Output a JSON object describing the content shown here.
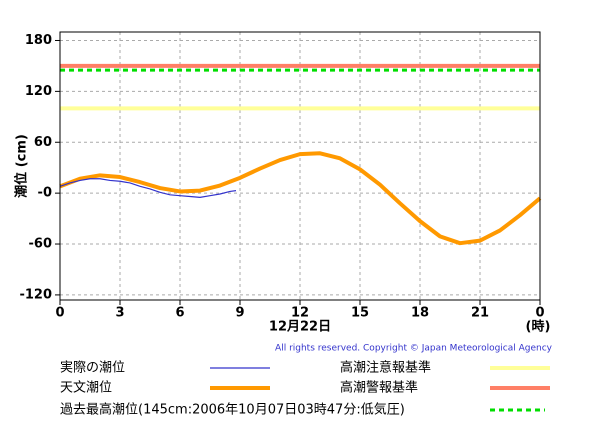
{
  "chart_data": {
    "type": "line",
    "ylabel": "潮位 (cm)",
    "xlabel": "12月22日",
    "xunit": "(時)",
    "copyright": "All rights reserved. Copyright © Japan Meteorological Agency",
    "xlim": [
      0,
      24
    ],
    "xticks": [
      0,
      3,
      6,
      9,
      12,
      15,
      18,
      21,
      {
        "value": 24,
        "label": "0"
      }
    ],
    "ylim": [
      -126,
      190
    ],
    "yticks": [
      -120,
      -60,
      {
        "value": 0,
        "label": "-0"
      },
      60,
      120,
      180
    ],
    "grid": true,
    "series": [
      {
        "name": "実際の潮位",
        "color": "#3333cc",
        "x": [
          0,
          0.5,
          1,
          1.5,
          2,
          2.5,
          3,
          3.5,
          4,
          4.5,
          5,
          5.5,
          6,
          6.5,
          7,
          7.5,
          8,
          8.5,
          8.8
        ],
        "values": [
          8,
          12,
          15,
          17,
          17,
          15,
          14,
          12,
          8,
          5,
          1,
          -2,
          -3,
          -4,
          -5,
          -3,
          -1,
          2,
          3
        ]
      },
      {
        "name": "天文潮位",
        "color": "#ff9900",
        "x": [
          0,
          1,
          2,
          3,
          4,
          5,
          6,
          7,
          8,
          9,
          10,
          11,
          12,
          13,
          14,
          15,
          16,
          17,
          18,
          19,
          20,
          21,
          22,
          23,
          24
        ],
        "values": [
          8,
          17,
          21,
          19,
          13,
          6,
          2,
          3,
          9,
          18,
          29,
          39,
          46,
          47,
          41,
          28,
          10,
          -12,
          -33,
          -51,
          -59,
          -56,
          -44,
          -26,
          -6
        ]
      }
    ],
    "reference_lines": [
      {
        "name": "高潮注意報基準",
        "value": 100,
        "color": "#ffff99",
        "dashed": false
      },
      {
        "name": "高潮警報基準",
        "value": 150,
        "color": "#ff7f66",
        "dashed": false
      },
      {
        "name": "過去最高潮位(145cm:2006年10月07日03時47分:低気圧)",
        "value": 145,
        "color": "#00dd00",
        "dashed": true
      }
    ]
  }
}
